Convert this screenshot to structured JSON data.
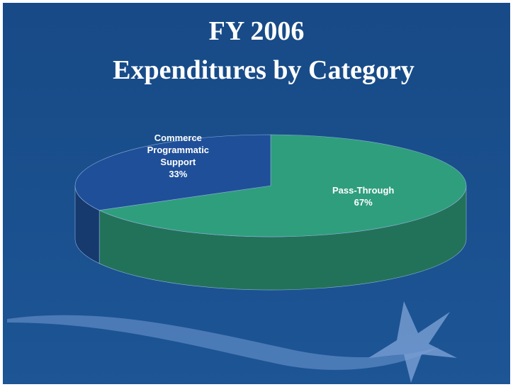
{
  "chart_data": {
    "type": "pie",
    "title": "FY 2006",
    "subtitle": "Expenditures by Category",
    "categories": [
      "Pass-Through",
      "Commerce Programmatic Support"
    ],
    "values": [
      67,
      33
    ],
    "value_labels": [
      "67%",
      "33%"
    ],
    "colors": [
      "#2f9e7d",
      "#1f4f99"
    ]
  }
}
